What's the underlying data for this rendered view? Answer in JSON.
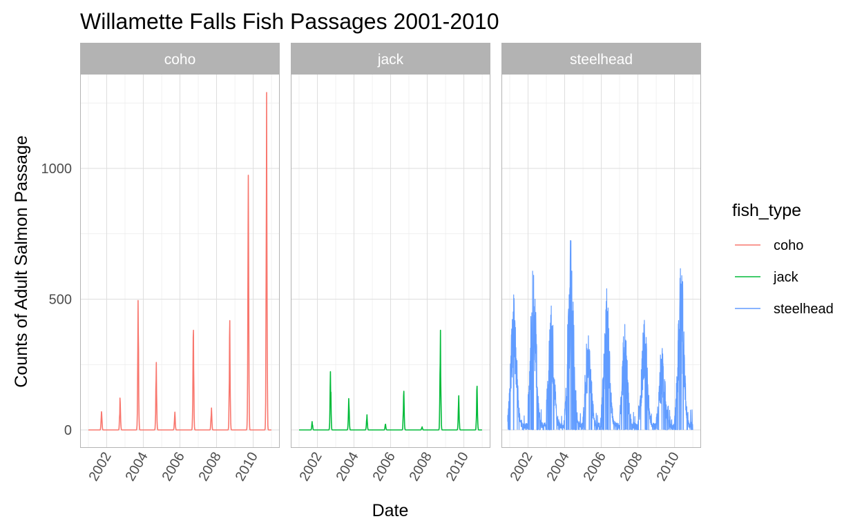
{
  "chart_data": {
    "type": "line",
    "title": "Willamette Falls Fish Passages 2001-2010",
    "xlabel": "Date",
    "ylabel": "Counts of Adult Salmon Passage",
    "x_range": [
      "2001-01-01",
      "2010-12-31"
    ],
    "x_ticks": [
      "2002",
      "2004",
      "2006",
      "2008",
      "2010"
    ],
    "ylim": [
      -70,
      1290
    ],
    "y_ticks": [
      0,
      500,
      1000
    ],
    "grid": true,
    "legend": {
      "title": "fish_type",
      "position": "right",
      "entries": [
        "coho",
        "jack",
        "steelhead"
      ]
    },
    "facets": [
      "coho",
      "jack",
      "steelhead"
    ],
    "series": [
      {
        "name": "coho",
        "color": "#F8766D",
        "peaks": [
          {
            "date": "2001-09-20",
            "value": 70
          },
          {
            "date": "2002-09-25",
            "value": 122
          },
          {
            "date": "2003-09-20",
            "value": 495
          },
          {
            "date": "2004-09-15",
            "value": 258
          },
          {
            "date": "2005-09-20",
            "value": 68
          },
          {
            "date": "2006-09-25",
            "value": 381
          },
          {
            "date": "2007-09-20",
            "value": 84
          },
          {
            "date": "2008-09-20",
            "value": 418
          },
          {
            "date": "2009-09-25",
            "value": 974
          },
          {
            "date": "2010-09-25",
            "value": 1290
          }
        ]
      },
      {
        "name": "jack",
        "color": "#00BA38",
        "peaks": [
          {
            "date": "2001-09-20",
            "value": 32
          },
          {
            "date": "2002-09-20",
            "value": 223
          },
          {
            "date": "2003-09-20",
            "value": 120
          },
          {
            "date": "2004-09-15",
            "value": 58
          },
          {
            "date": "2005-09-20",
            "value": 22
          },
          {
            "date": "2006-09-20",
            "value": 148
          },
          {
            "date": "2007-09-20",
            "value": 12
          },
          {
            "date": "2008-09-20",
            "value": 381
          },
          {
            "date": "2009-09-20",
            "value": 131
          },
          {
            "date": "2010-09-20",
            "value": 167
          }
        ]
      },
      {
        "name": "steelhead",
        "color": "#619CFF",
        "peaks": [
          {
            "date": "2001-03-20",
            "value": 500
          },
          {
            "date": "2002-04-15",
            "value": 648
          },
          {
            "date": "2003-04-10",
            "value": 460
          },
          {
            "date": "2004-05-01",
            "value": 712
          },
          {
            "date": "2005-04-20",
            "value": 335
          },
          {
            "date": "2006-04-20",
            "value": 525
          },
          {
            "date": "2007-04-15",
            "value": 390
          },
          {
            "date": "2008-05-10",
            "value": 415
          },
          {
            "date": "2009-05-01",
            "value": 300
          },
          {
            "date": "2010-05-10",
            "value": 650
          }
        ]
      }
    ]
  }
}
